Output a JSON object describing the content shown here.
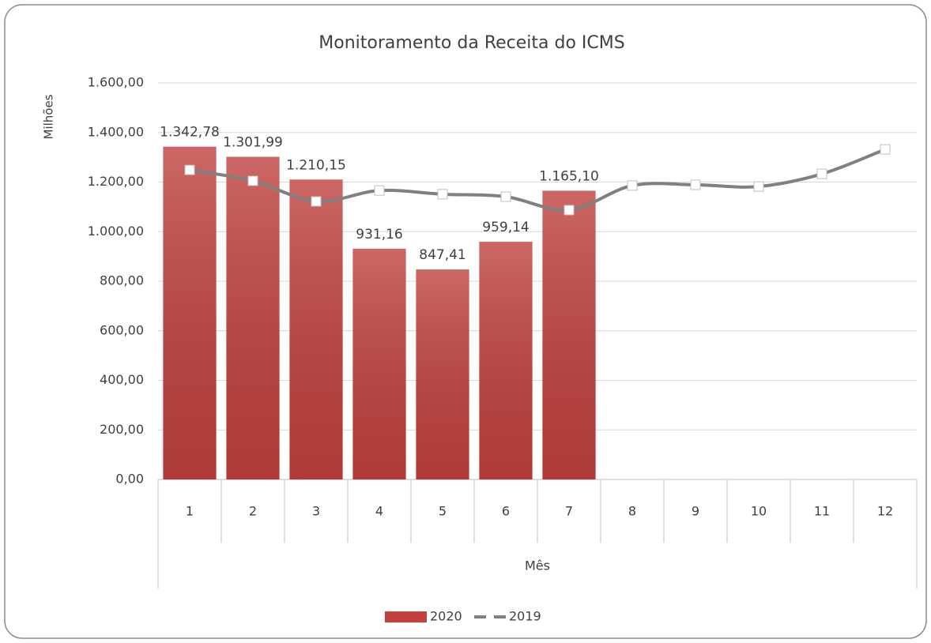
{
  "chart_data": {
    "type": "bar",
    "title": "Monitoramento da Receita do ICMS",
    "xlabel": "Mês",
    "ylabel": "Milhões",
    "categories": [
      "1",
      "2",
      "3",
      "4",
      "5",
      "6",
      "7",
      "8",
      "9",
      "10",
      "11",
      "12"
    ],
    "series": [
      {
        "name": "2020",
        "color": "#c0413e",
        "type": "bar",
        "values": [
          1342.78,
          1301.99,
          1210.15,
          931.16,
          847.41,
          959.14,
          1165.1,
          null,
          null,
          null,
          null,
          null
        ],
        "value_labels": [
          "1.342,78",
          "1.301,99",
          "1.210,15",
          "931,16",
          "847,41",
          "959,14",
          "1.165,10",
          null,
          null,
          null,
          null,
          null
        ]
      },
      {
        "name": "2019",
        "color": "#808080",
        "type": "line",
        "values": [
          1249,
          1205,
          1122,
          1166,
          1151,
          1141,
          1087,
          1186,
          1189,
          1182,
          1233,
          1332
        ]
      }
    ],
    "ylim": [
      0,
      1600
    ],
    "yticks": [
      {
        "value": 0,
        "label": "0,00"
      },
      {
        "value": 200,
        "label": "200,00"
      },
      {
        "value": 400,
        "label": "400,00"
      },
      {
        "value": 600,
        "label": "600,00"
      },
      {
        "value": 800,
        "label": "800,00"
      },
      {
        "value": 1000,
        "label": "1.000,00"
      },
      {
        "value": 1200,
        "label": "1.200,00"
      },
      {
        "value": 1400,
        "label": "1.400,00"
      },
      {
        "value": 1600,
        "label": "1.600,00"
      }
    ],
    "grid": true,
    "legend": "bottom"
  }
}
